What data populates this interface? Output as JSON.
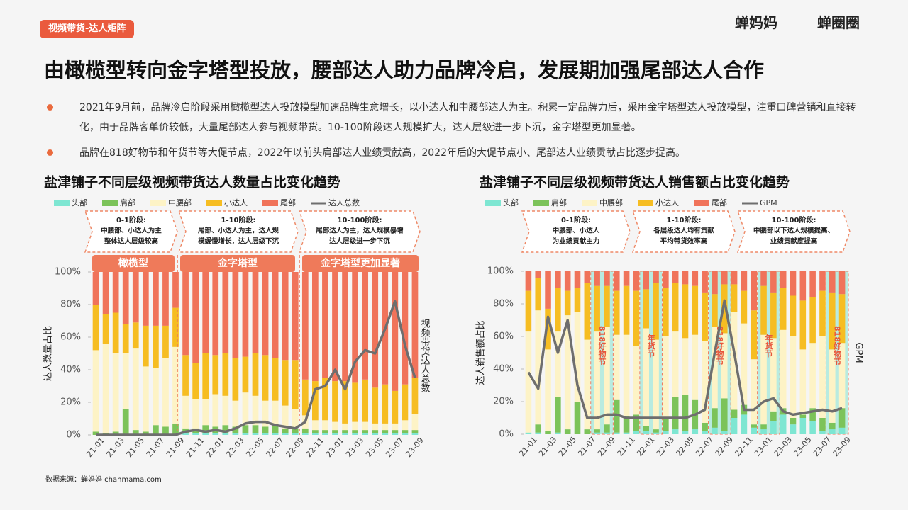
{
  "header": {
    "tag": "视频带货-达人矩阵",
    "logos": [
      "蝉妈妈",
      "蝉圈圈"
    ],
    "title": "由橄榄型转向金字塔型投放，腰部达人助力品牌冷启，发展期加强尾部达人合作"
  },
  "bullets": [
    "2021年9月前，品牌冷启阶段采用橄榄型达人投放模型加速品牌生意增长，以小达人和中腰部达人为主。积累一定品牌力后，采用金字塔型达人投放模型，注重口碑营销和直接转化，由于品牌客单价较低，大量尾部达人参与视频带货。10-100阶段达人规模扩大，达人层级进一步下沉，金字塔型更加显著。",
    "品牌在818好物节和年货节等大促节点，2022年以前头肩部达人业绩贡献高，2022年后的大促节点小、尾部达人业绩贡献占比逐步提高。"
  ],
  "chart_data": [
    {
      "type": "bar",
      "stacked": true,
      "title": "盐津铺子不同层级视频带货达人数量占比变化趋势",
      "y_label": "达人数量占比",
      "y2_label": "视频带货达人总数",
      "categories": [
        "21-01",
        null,
        "21-03",
        null,
        "21-05",
        null,
        "21-07",
        null,
        "21-09",
        null,
        "21-11",
        null,
        "22-01",
        null,
        "22-03",
        null,
        "22-05",
        null,
        "22-07",
        null,
        "22-09",
        null,
        "22-11",
        null,
        "23-01",
        null,
        "23-03",
        null,
        "23-05",
        null,
        "23-07",
        null,
        "23-09"
      ],
      "series": [
        {
          "name": "头部",
          "color": "#7ee6d2",
          "values": [
            0,
            0,
            0,
            0,
            0,
            0,
            0,
            0,
            0,
            1,
            1,
            1,
            1,
            1,
            1,
            1,
            1,
            1,
            1,
            1,
            1,
            1,
            1,
            1,
            1,
            1,
            1,
            1,
            1,
            1,
            1,
            1,
            1
          ]
        },
        {
          "name": "肩部",
          "color": "#7cc35a",
          "values": [
            2,
            1,
            2,
            16,
            3,
            2,
            6,
            5,
            7,
            3,
            3,
            5,
            4,
            5,
            4,
            5,
            5,
            4,
            5,
            3,
            3,
            3,
            2,
            2,
            2,
            2,
            2,
            2,
            2,
            2,
            2,
            2,
            2
          ]
        },
        {
          "name": "中腰部",
          "color": "#fdf3c6",
          "values": [
            50,
            55,
            48,
            34,
            50,
            40,
            35,
            42,
            47,
            20,
            18,
            16,
            20,
            18,
            16,
            20,
            18,
            16,
            15,
            14,
            12,
            8,
            6,
            6,
            5,
            4,
            5,
            5,
            4,
            4,
            4,
            6,
            10
          ]
        },
        {
          "name": "小达人",
          "color": "#f6bd22",
          "values": [
            28,
            18,
            25,
            18,
            16,
            25,
            26,
            20,
            24,
            25,
            22,
            28,
            24,
            26,
            26,
            22,
            26,
            28,
            26,
            28,
            30,
            22,
            24,
            26,
            25,
            26,
            24,
            26,
            22,
            24,
            20,
            22,
            22
          ]
        },
        {
          "name": "尾部",
          "color": "#f0735a",
          "values": [
            20,
            26,
            25,
            32,
            31,
            33,
            33,
            33,
            22,
            51,
            56,
            50,
            51,
            50,
            53,
            52,
            50,
            51,
            53,
            54,
            54,
            66,
            67,
            65,
            67,
            67,
            68,
            66,
            71,
            69,
            73,
            69,
            65
          ]
        },
        {
          "name": "达人总数",
          "color": "#6e6e6e",
          "axis": "y2",
          "values": [
            0,
            0,
            0,
            0,
            0,
            0,
            0,
            0,
            0,
            2,
            3,
            2,
            3,
            2,
            4,
            7,
            8,
            8,
            6,
            5,
            4,
            8,
            28,
            30,
            40,
            28,
            45,
            52,
            50,
            65,
            82,
            55,
            35
          ]
        }
      ],
      "ylim": [
        0,
        100
      ],
      "yticks": [
        {
          "value": 0,
          "label": "0%"
        },
        {
          "value": 20,
          "label": "20%"
        },
        {
          "value": 40,
          "label": "40%"
        },
        {
          "value": 60,
          "label": "60%"
        },
        {
          "value": 80,
          "label": "80%"
        },
        {
          "value": 100,
          "label": "100%"
        }
      ],
      "y2lim": [
        0,
        100
      ],
      "stages": [
        {
          "title": "0-1阶段:",
          "lines": [
            "中腰部、小达人为主",
            "整体达人层级较高"
          ]
        },
        {
          "title": "1-10阶段:",
          "lines": [
            "尾部、小达人为主，达人规",
            "模缓慢增长，达人层级下沉"
          ]
        },
        {
          "title": "10-100阶段:",
          "lines": [
            "尾部达人为主，达人规模暴增",
            "达人层级进一步下沉"
          ]
        }
      ],
      "phases": [
        "橄榄型",
        "金字塔型",
        "金字塔型更加显著"
      ]
    },
    {
      "type": "bar",
      "stacked": true,
      "title": "盐津铺子不同层级视频带货达人销售额占比变化趋势",
      "y_label": "达人销售额占比",
      "y2_label": "GPM",
      "categories": [
        "21-01",
        null,
        "21-03",
        null,
        "21-05",
        null,
        "21-07",
        null,
        "21-09",
        null,
        "21-11",
        null,
        "22-01",
        null,
        "22-03",
        null,
        "22-05",
        null,
        "22-07",
        null,
        "22-09",
        null,
        "22-11",
        null,
        "23-01",
        null,
        "23-03",
        null,
        "23-05",
        null,
        "23-07",
        null,
        "23-09"
      ],
      "series": [
        {
          "name": "头部",
          "color": "#7ee6d2",
          "values": [
            1,
            1,
            0,
            1,
            0,
            0,
            0,
            1,
            1,
            1,
            1,
            2,
            2,
            1,
            2,
            3,
            2,
            3,
            2,
            4,
            2,
            10,
            12,
            4,
            3,
            8,
            12,
            6,
            10,
            8,
            2,
            3,
            4
          ]
        },
        {
          "name": "肩部",
          "color": "#7cc35a",
          "values": [
            0,
            5,
            2,
            22,
            3,
            20,
            3,
            2,
            5,
            20,
            10,
            10,
            3,
            2,
            8,
            20,
            22,
            18,
            5,
            12,
            20,
            5,
            6,
            2,
            3,
            6,
            4,
            4,
            2,
            8,
            8,
            4,
            12
          ]
        },
        {
          "name": "中腰部",
          "color": "#fdf3c6",
          "values": [
            62,
            70,
            50,
            40,
            70,
            55,
            55,
            60,
            60,
            40,
            50,
            42,
            60,
            55,
            50,
            40,
            35,
            40,
            50,
            50,
            40,
            60,
            50,
            40,
            55,
            45,
            48,
            50,
            40,
            40,
            50,
            45,
            40
          ]
        },
        {
          "name": "小达人",
          "color": "#f6bd22",
          "values": [
            25,
            20,
            25,
            27,
            15,
            15,
            35,
            28,
            25,
            27,
            30,
            34,
            24,
            35,
            30,
            30,
            33,
            30,
            30,
            20,
            30,
            17,
            20,
            30,
            30,
            28,
            26,
            25,
            30,
            28,
            28,
            35,
            30
          ]
        },
        {
          "name": "尾部",
          "color": "#f0735a",
          "values": [
            12,
            4,
            23,
            10,
            12,
            10,
            7,
            9,
            9,
            12,
            9,
            12,
            11,
            7,
            10,
            7,
            8,
            9,
            13,
            14,
            8,
            8,
            12,
            24,
            9,
            13,
            10,
            15,
            18,
            16,
            12,
            13,
            14
          ]
        },
        {
          "name": "GPM",
          "color": "#6e6e6e",
          "axis": "y2",
          "values": [
            38,
            28,
            72,
            50,
            70,
            30,
            10,
            10,
            12,
            12,
            10,
            10,
            10,
            10,
            10,
            10,
            10,
            12,
            15,
            50,
            82,
            50,
            15,
            15,
            20,
            22,
            14,
            12,
            13,
            14,
            15,
            14,
            16
          ]
        }
      ],
      "ylim": [
        0,
        100
      ],
      "yticks": [
        {
          "value": 0,
          "label": "0%"
        },
        {
          "value": 20,
          "label": "20%"
        },
        {
          "value": 40,
          "label": "40%"
        },
        {
          "value": 60,
          "label": "60%"
        },
        {
          "value": 80,
          "label": "80%"
        },
        {
          "value": 100,
          "label": "100%"
        }
      ],
      "y2lim": [
        0,
        100
      ],
      "stages": [
        {
          "title": "0-1阶段:",
          "lines": [
            "中腰部、小达人",
            "为业绩贡献主力"
          ]
        },
        {
          "title": "1-10阶段:",
          "lines": [
            "各层级达人均有贡献",
            "平均带货效率高"
          ]
        },
        {
          "title": "10-100阶段:",
          "lines": [
            "中腰部以下达人规模提高、",
            "业绩贡献度提高"
          ]
        }
      ],
      "annotations": [
        "818好物节",
        "年货节",
        "818好物节",
        "年货节",
        "818好物节"
      ]
    }
  ],
  "source": "数据来源：蝉妈妈 chanmama.com"
}
